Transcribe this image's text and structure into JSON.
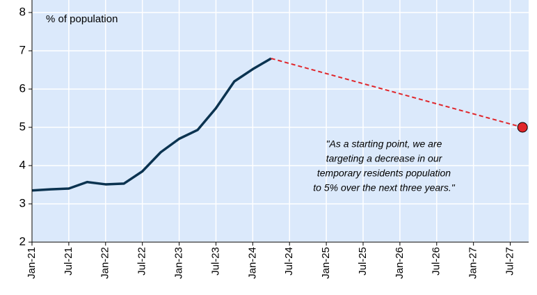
{
  "chart_data": {
    "type": "line",
    "axis_label": "% of population",
    "annotation": [
      "\"As a starting point, we are",
      "targeting a decrease in our",
      "temporary residents population",
      "to 5% over the next three years.\""
    ],
    "series": [
      {
        "color": "#0b3350",
        "style": "solid",
        "x": [
          "2021-01",
          "2021-04",
          "2021-07",
          "2021-10",
          "2022-01",
          "2022-04",
          "2022-07",
          "2022-10",
          "2023-01",
          "2023-04",
          "2023-07",
          "2023-10",
          "2024-01",
          "2024-04"
        ],
        "values": [
          3.35,
          3.38,
          3.4,
          3.57,
          3.51,
          3.53,
          3.85,
          4.35,
          4.7,
          4.93,
          5.5,
          6.2,
          6.52,
          6.8
        ]
      },
      {
        "color": "#e0262b",
        "style": "dashed",
        "marker_last": true,
        "x": [
          "2024-04",
          "2027-09"
        ],
        "values": [
          6.8,
          5
        ]
      }
    ],
    "xlim": [
      "2021-01",
      "2027-10"
    ],
    "xticks": [
      {
        "value": "2021-01",
        "label": "Jan-21"
      },
      {
        "value": "2021-07",
        "label": "Jul-21"
      },
      {
        "value": "2022-01",
        "label": "Jan-22"
      },
      {
        "value": "2022-07",
        "label": "Jul-22"
      },
      {
        "value": "2023-01",
        "label": "Jan-23"
      },
      {
        "value": "2023-07",
        "label": "Jul-23"
      },
      {
        "value": "2024-01",
        "label": "Jan-24"
      },
      {
        "value": "2024-07",
        "label": "Jul-24"
      },
      {
        "value": "2025-01",
        "label": "Jan-25"
      },
      {
        "value": "2025-07",
        "label": "Jul-25"
      },
      {
        "value": "2026-01",
        "label": "Jan-26"
      },
      {
        "value": "2026-07",
        "label": "Jul-26"
      },
      {
        "value": "2027-01",
        "label": "Jan-27"
      },
      {
        "value": "2027-07",
        "label": "Jul-27"
      }
    ],
    "ylim": [
      2,
      8
    ],
    "yticks": [
      2,
      3,
      4,
      5,
      6,
      7,
      8
    ],
    "grid": true,
    "background": "#dbe9fb"
  }
}
